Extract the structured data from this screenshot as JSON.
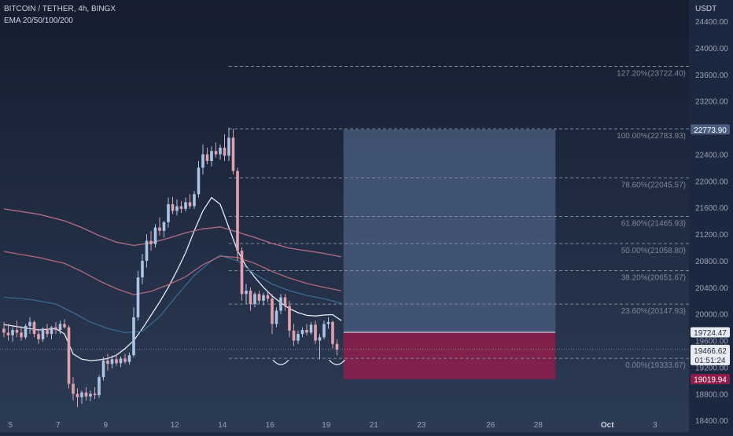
{
  "header": {
    "title": "BITCOIN / TETHER, 4h, BINGX",
    "indicator": "EMA 20/50/100/200"
  },
  "chart_data": {
    "type": "candlestick",
    "symbol": "BITCOIN / TETHER",
    "timeframe": "4h",
    "exchange": "BINGX",
    "indicator": "EMA 20/50/100/200",
    "y_axis": {
      "unit": "USDT",
      "ticks": [
        24400,
        24000,
        23600,
        23200,
        22800,
        22400,
        22000,
        21600,
        21200,
        20800,
        20400,
        20000,
        19600,
        19200,
        18800,
        18400
      ],
      "tick_labels": [
        "24400.00",
        "24000.00",
        "23600.00",
        "23200.00",
        "22800.00",
        "22400.00",
        "22000.00",
        "21600.00",
        "21200.00",
        "20800.00",
        "20400.00",
        "20000.00",
        "19600.00",
        "19200.00",
        "18800.00",
        "18400.00"
      ],
      "range": [
        18225,
        24720
      ]
    },
    "x_axis": {
      "ticks": [
        "5",
        "7",
        "9",
        "12",
        "14",
        "16",
        "19",
        "21",
        "23",
        "26",
        "28",
        "Oct",
        "3"
      ],
      "tick_index": [
        1.5,
        12.5,
        23.5,
        39.5,
        50.5,
        61.5,
        74.5,
        85.5,
        96.5,
        112.5,
        123.5,
        139.5,
        150.5
      ]
    },
    "fibonacci": [
      {
        "label": "127.20%(23722.40)",
        "price": 23722.4
      },
      {
        "label": "100.00%(22783.93)",
        "price": 22783.93
      },
      {
        "label": "78.60%(22045.57)",
        "price": 22045.57
      },
      {
        "label": "61.80%(21465.93)",
        "price": 21465.93
      },
      {
        "label": "50.00%(21058.80)",
        "price": 21058.8
      },
      {
        "label": "38.20%(20651.67)",
        "price": 20651.67
      },
      {
        "label": "23.60%(20147.93)",
        "price": 20147.93
      },
      {
        "label": "0.00%(19333.67)",
        "price": 19333.67
      }
    ],
    "position": {
      "entry": 19724.47,
      "target": 22773.9,
      "stop": 19019.94,
      "start_index": 78.5,
      "end_index": 127.5
    },
    "price_labels": [
      {
        "text": "22773.90",
        "price": 22773.9,
        "color": "#4a5d7e"
      },
      {
        "text": "19724.47",
        "price": 19724.47,
        "color": "#e8ecf2"
      },
      {
        "text": "19466.62",
        "price": 19466.62,
        "color": "#e8ecf2"
      },
      {
        "text": "01:51:24",
        "price": 19466.62,
        "color": "#e8ecf2"
      },
      {
        "text": "19019.94",
        "price": 19019.94,
        "color": "#8f1c4b"
      }
    ],
    "candles": [
      {
        "o": 19780,
        "h": 19880,
        "l": 19650,
        "c": 19720
      },
      {
        "o": 19720,
        "h": 19850,
        "l": 19600,
        "c": 19680
      },
      {
        "o": 19680,
        "h": 19800,
        "l": 19580,
        "c": 19760
      },
      {
        "o": 19760,
        "h": 19900,
        "l": 19650,
        "c": 19720
      },
      {
        "o": 19720,
        "h": 19820,
        "l": 19600,
        "c": 19650
      },
      {
        "o": 19650,
        "h": 19850,
        "l": 19620,
        "c": 19820
      },
      {
        "o": 19820,
        "h": 19950,
        "l": 19700,
        "c": 19880
      },
      {
        "o": 19880,
        "h": 19900,
        "l": 19650,
        "c": 19700
      },
      {
        "o": 19700,
        "h": 19780,
        "l": 19550,
        "c": 19620
      },
      {
        "o": 19620,
        "h": 19800,
        "l": 19580,
        "c": 19780
      },
      {
        "o": 19780,
        "h": 19850,
        "l": 19650,
        "c": 19700
      },
      {
        "o": 19700,
        "h": 19820,
        "l": 19620,
        "c": 19800
      },
      {
        "o": 19800,
        "h": 19880,
        "l": 19700,
        "c": 19760
      },
      {
        "o": 19760,
        "h": 19900,
        "l": 19700,
        "c": 19850
      },
      {
        "o": 19850,
        "h": 19920,
        "l": 19780,
        "c": 19800
      },
      {
        "o": 19800,
        "h": 19830,
        "l": 18880,
        "c": 18950
      },
      {
        "o": 18950,
        "h": 19050,
        "l": 18700,
        "c": 18800
      },
      {
        "o": 18800,
        "h": 18880,
        "l": 18600,
        "c": 18750
      },
      {
        "o": 18750,
        "h": 18850,
        "l": 18650,
        "c": 18820
      },
      {
        "o": 18820,
        "h": 18900,
        "l": 18700,
        "c": 18760
      },
      {
        "o": 18760,
        "h": 18850,
        "l": 18690,
        "c": 18800
      },
      {
        "o": 18800,
        "h": 18900,
        "l": 18720,
        "c": 18780
      },
      {
        "o": 18780,
        "h": 19080,
        "l": 18740,
        "c": 19050
      },
      {
        "o": 19050,
        "h": 19350,
        "l": 19000,
        "c": 19300
      },
      {
        "o": 19300,
        "h": 19400,
        "l": 19150,
        "c": 19250
      },
      {
        "o": 19250,
        "h": 19380,
        "l": 19180,
        "c": 19320
      },
      {
        "o": 19320,
        "h": 19400,
        "l": 19220,
        "c": 19260
      },
      {
        "o": 19260,
        "h": 19360,
        "l": 19200,
        "c": 19330
      },
      {
        "o": 19330,
        "h": 19400,
        "l": 19250,
        "c": 19280
      },
      {
        "o": 19280,
        "h": 19420,
        "l": 19240,
        "c": 19380
      },
      {
        "o": 19380,
        "h": 20100,
        "l": 19350,
        "c": 19950
      },
      {
        "o": 19950,
        "h": 20650,
        "l": 19900,
        "c": 20550
      },
      {
        "o": 20550,
        "h": 20900,
        "l": 20450,
        "c": 20800
      },
      {
        "o": 20800,
        "h": 21200,
        "l": 20700,
        "c": 21100
      },
      {
        "o": 21100,
        "h": 21250,
        "l": 20950,
        "c": 21050
      },
      {
        "o": 21050,
        "h": 21350,
        "l": 21000,
        "c": 21300
      },
      {
        "o": 21300,
        "h": 21450,
        "l": 21180,
        "c": 21250
      },
      {
        "o": 21250,
        "h": 21400,
        "l": 21150,
        "c": 21380
      },
      {
        "o": 21380,
        "h": 21750,
        "l": 21300,
        "c": 21650
      },
      {
        "o": 21650,
        "h": 21760,
        "l": 21500,
        "c": 21550
      },
      {
        "o": 21550,
        "h": 21720,
        "l": 21480,
        "c": 21620
      },
      {
        "o": 21620,
        "h": 21700,
        "l": 21520,
        "c": 21580
      },
      {
        "o": 21580,
        "h": 21750,
        "l": 21540,
        "c": 21680
      },
      {
        "o": 21680,
        "h": 21800,
        "l": 21580,
        "c": 21620
      },
      {
        "o": 21620,
        "h": 21850,
        "l": 21580,
        "c": 21800
      },
      {
        "o": 21800,
        "h": 22300,
        "l": 21750,
        "c": 22200
      },
      {
        "o": 22200,
        "h": 22550,
        "l": 22100,
        "c": 22400
      },
      {
        "o": 22400,
        "h": 22500,
        "l": 22250,
        "c": 22300
      },
      {
        "o": 22300,
        "h": 22520,
        "l": 22220,
        "c": 22450
      },
      {
        "o": 22450,
        "h": 22580,
        "l": 22350,
        "c": 22400
      },
      {
        "o": 22400,
        "h": 22550,
        "l": 22320,
        "c": 22500
      },
      {
        "o": 22500,
        "h": 22700,
        "l": 22300,
        "c": 22380
      },
      {
        "o": 22380,
        "h": 22800,
        "l": 22300,
        "c": 22650
      },
      {
        "o": 22650,
        "h": 22784,
        "l": 22100,
        "c": 22150
      },
      {
        "o": 22150,
        "h": 22200,
        "l": 20800,
        "c": 20950
      },
      {
        "o": 20950,
        "h": 21000,
        "l": 20200,
        "c": 20300
      },
      {
        "o": 20300,
        "h": 20450,
        "l": 20150,
        "c": 20350
      },
      {
        "o": 20350,
        "h": 20400,
        "l": 20050,
        "c": 20150
      },
      {
        "o": 20150,
        "h": 20330,
        "l": 20100,
        "c": 20300
      },
      {
        "o": 20300,
        "h": 20350,
        "l": 20150,
        "c": 20200
      },
      {
        "o": 20200,
        "h": 20320,
        "l": 20130,
        "c": 20280
      },
      {
        "o": 20280,
        "h": 20330,
        "l": 20180,
        "c": 20230
      },
      {
        "o": 20230,
        "h": 20300,
        "l": 19700,
        "c": 19850
      },
      {
        "o": 19850,
        "h": 20100,
        "l": 19800,
        "c": 20050
      },
      {
        "o": 20050,
        "h": 20300,
        "l": 20000,
        "c": 20250
      },
      {
        "o": 20250,
        "h": 20300,
        "l": 20050,
        "c": 20120
      },
      {
        "o": 20120,
        "h": 20200,
        "l": 19650,
        "c": 19750
      },
      {
        "o": 19750,
        "h": 19850,
        "l": 19520,
        "c": 19600
      },
      {
        "o": 19600,
        "h": 19750,
        "l": 19550,
        "c": 19700
      },
      {
        "o": 19700,
        "h": 19800,
        "l": 19650,
        "c": 19760
      },
      {
        "o": 19760,
        "h": 19850,
        "l": 19680,
        "c": 19720
      },
      {
        "o": 19720,
        "h": 19880,
        "l": 19690,
        "c": 19840
      },
      {
        "o": 19840,
        "h": 19900,
        "l": 19550,
        "c": 19600
      },
      {
        "o": 19600,
        "h": 19700,
        "l": 19320,
        "c": 19650
      },
      {
        "o": 19650,
        "h": 19900,
        "l": 19620,
        "c": 19850
      },
      {
        "o": 19850,
        "h": 19950,
        "l": 19780,
        "c": 19880
      },
      {
        "o": 19880,
        "h": 19900,
        "l": 19480,
        "c": 19550
      },
      {
        "o": 19550,
        "h": 19620,
        "l": 19380,
        "c": 19466.62
      }
    ],
    "ema": [
      {
        "label": "EMA 20",
        "color": "#e6ebf4",
        "points": [
          [
            0,
            19840
          ],
          [
            4,
            19800
          ],
          [
            8,
            19760
          ],
          [
            12,
            19780
          ],
          [
            14,
            19700
          ],
          [
            16,
            19400
          ],
          [
            18,
            19320
          ],
          [
            20,
            19300
          ],
          [
            22,
            19310
          ],
          [
            24,
            19330
          ],
          [
            26,
            19380
          ],
          [
            28,
            19480
          ],
          [
            30,
            19600
          ],
          [
            32,
            19780
          ],
          [
            34,
            19980
          ],
          [
            36,
            20180
          ],
          [
            38,
            20400
          ],
          [
            40,
            20650
          ],
          [
            42,
            20920
          ],
          [
            44,
            21250
          ],
          [
            46,
            21550
          ],
          [
            48,
            21750
          ],
          [
            50,
            21650
          ],
          [
            52,
            21300
          ],
          [
            54,
            20950
          ],
          [
            56,
            20720
          ],
          [
            58,
            20550
          ],
          [
            60,
            20400
          ],
          [
            62,
            20270
          ],
          [
            64,
            20170
          ],
          [
            66,
            20080
          ],
          [
            68,
            20020
          ],
          [
            70,
            19980
          ],
          [
            72,
            19970
          ],
          [
            74,
            19985
          ],
          [
            76,
            19990
          ],
          [
            78,
            19900
          ]
        ]
      },
      {
        "label": "EMA 50",
        "color": "#3b6a93",
        "points": [
          [
            0,
            20250
          ],
          [
            6,
            20220
          ],
          [
            12,
            20150
          ],
          [
            16,
            20020
          ],
          [
            20,
            19880
          ],
          [
            24,
            19780
          ],
          [
            28,
            19720
          ],
          [
            32,
            19740
          ],
          [
            36,
            19960
          ],
          [
            40,
            20280
          ],
          [
            44,
            20580
          ],
          [
            48,
            20800
          ],
          [
            50,
            20880
          ],
          [
            54,
            20800
          ],
          [
            58,
            20600
          ],
          [
            62,
            20450
          ],
          [
            66,
            20350
          ],
          [
            70,
            20280
          ],
          [
            74,
            20230
          ],
          [
            78,
            20160
          ]
        ]
      },
      {
        "label": "EMA 100",
        "color": "#b2677b",
        "points": [
          [
            0,
            20940
          ],
          [
            8,
            20850
          ],
          [
            14,
            20760
          ],
          [
            18,
            20640
          ],
          [
            22,
            20500
          ],
          [
            26,
            20380
          ],
          [
            30,
            20290
          ],
          [
            34,
            20340
          ],
          [
            38,
            20440
          ],
          [
            42,
            20560
          ],
          [
            46,
            20740
          ],
          [
            50,
            20870
          ],
          [
            54,
            20850
          ],
          [
            58,
            20760
          ],
          [
            62,
            20640
          ],
          [
            66,
            20540
          ],
          [
            70,
            20460
          ],
          [
            74,
            20400
          ],
          [
            78,
            20350
          ]
        ]
      },
      {
        "label": "EMA 200",
        "color": "#b56d86",
        "points": [
          [
            0,
            21580
          ],
          [
            8,
            21500
          ],
          [
            14,
            21400
          ],
          [
            18,
            21300
          ],
          [
            22,
            21180
          ],
          [
            26,
            21080
          ],
          [
            30,
            21030
          ],
          [
            34,
            21070
          ],
          [
            38,
            21140
          ],
          [
            42,
            21220
          ],
          [
            46,
            21280
          ],
          [
            50,
            21310
          ],
          [
            54,
            21230
          ],
          [
            58,
            21150
          ],
          [
            62,
            21060
          ],
          [
            66,
            20990
          ],
          [
            70,
            20950
          ],
          [
            74,
            20910
          ],
          [
            78,
            20860
          ]
        ]
      }
    ],
    "annotations": [
      {
        "type": "double-bottom-arc",
        "index": 64,
        "price": 19333.67
      },
      {
        "type": "double-bottom-arc",
        "index": 77,
        "price": 19333.67
      }
    ]
  },
  "colors": {
    "background": "#1e2a42",
    "text": "#9aa3b4",
    "bull_candle": "#aac4e4",
    "bear_candle": "#e3a0ac",
    "target_zone": "#47597a",
    "stop_zone": "#8f1c4b",
    "fib_line": "#7e8797"
  }
}
